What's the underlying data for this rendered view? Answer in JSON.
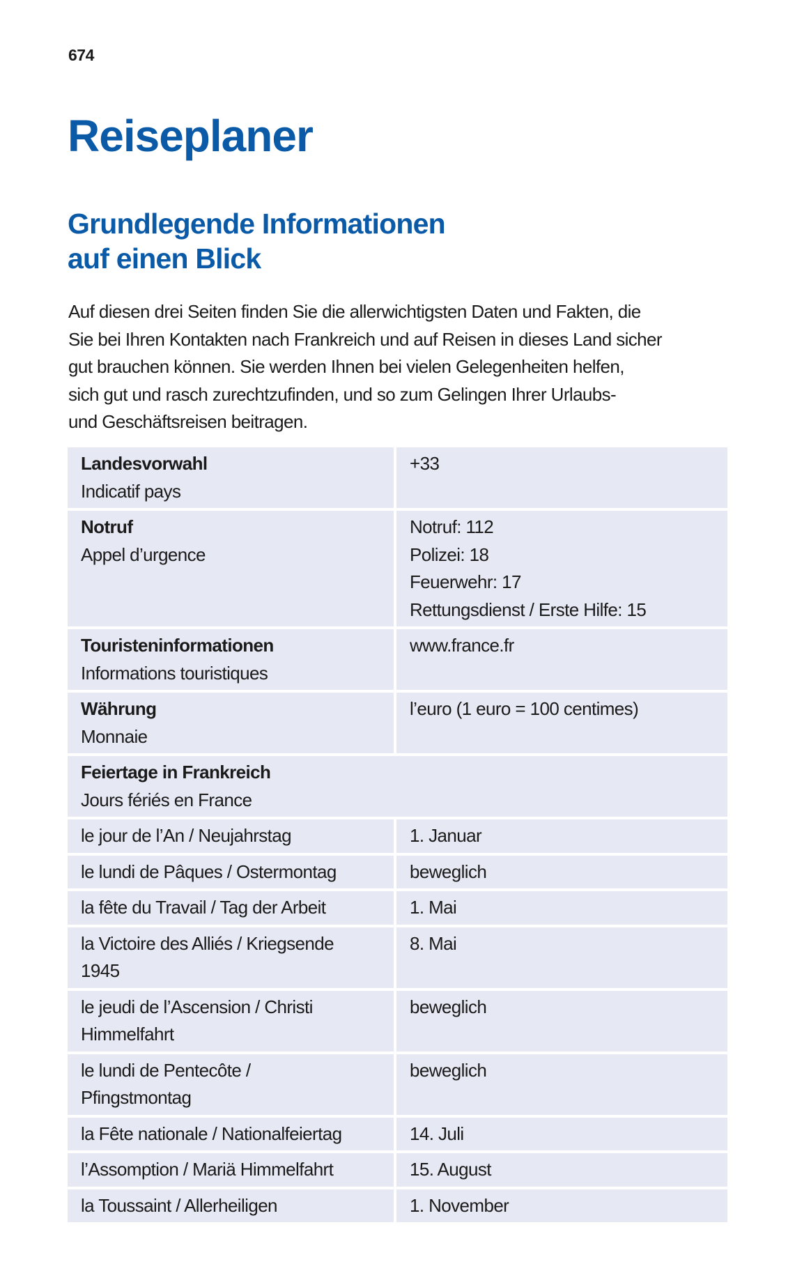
{
  "page_number": "674",
  "title": "Reiseplaner",
  "subtitle_lines": [
    "Grundlegende Informationen",
    "auf einen Blick"
  ],
  "intro_lines": [
    "Auf diesen drei Seiten finden Sie die allerwichtigsten Daten und Fakten, die",
    "Sie bei Ihren Kontakten nach Frankreich und auf Reisen in dieses Land sicher",
    "gut brauchen können. Sie werden Ihnen bei vielen Gelegenheiten helfen,",
    "sich gut und rasch zurechtzufinden, und so zum Gelingen Ihrer Urlaubs-",
    "und Geschäftsreisen beitragen."
  ],
  "colors": {
    "heading": "#0a5aa8",
    "row_background": "#e6e8f3"
  },
  "info_rows": [
    {
      "label": "Landesvorwahl",
      "sublabel": "Indicatif pays",
      "values": [
        "+33"
      ]
    },
    {
      "label": "Notruf",
      "sublabel": "Appel d’urgence",
      "values": [
        "Notruf: 112",
        "Polizei: 18",
        "Feuerwehr: 17",
        "Rettungsdienst / Erste Hilfe: 15"
      ]
    },
    {
      "label": "Touristeninformationen",
      "sublabel": "Informations touristiques",
      "values": [
        "www.france.fr"
      ]
    },
    {
      "label": "Währung",
      "sublabel": "Monnaie",
      "values": [
        "l’euro (1 euro = 100 centimes)"
      ]
    }
  ],
  "holidays_header": {
    "label": "Feiertage in Frankreich",
    "sublabel": "Jours fériés en France"
  },
  "holidays": [
    {
      "name_lines": [
        "le jour de l’An / Neujahrstag"
      ],
      "date": "1. Januar"
    },
    {
      "name_lines": [
        "le lundi de Pâques / Ostermontag"
      ],
      "date": "beweglich"
    },
    {
      "name_lines": [
        "la fête du Travail / Tag der Arbeit"
      ],
      "date": "1. Mai"
    },
    {
      "name_lines": [
        "la Victoire des Alliés / Kriegsende",
        "1945"
      ],
      "date": "8. Mai"
    },
    {
      "name_lines": [
        "le jeudi de l’Ascension / Christi",
        "Himmelfahrt"
      ],
      "date": "beweglich"
    },
    {
      "name_lines": [
        "le lundi de Pentecôte /",
        "Pfingstmontag"
      ],
      "date": "beweglich"
    },
    {
      "name_lines": [
        "la Fête nationale / Nationalfeiertag"
      ],
      "date": "14. Juli"
    },
    {
      "name_lines": [
        "l’Assomption / Mariä Himmelfahrt"
      ],
      "date": "15. August"
    },
    {
      "name_lines": [
        "la Toussaint / Allerheiligen"
      ],
      "date": "1. November"
    }
  ]
}
